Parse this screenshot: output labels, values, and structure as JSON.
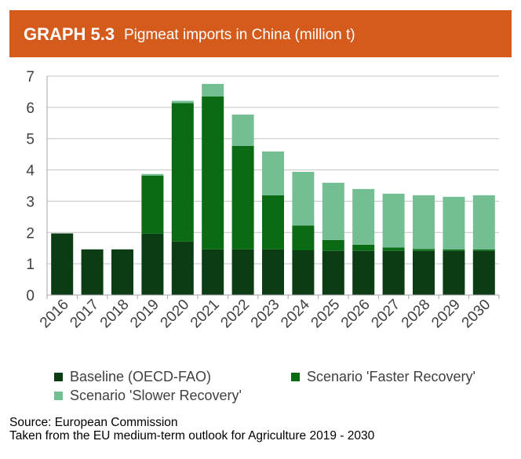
{
  "header": {
    "graph_label": "GRAPH 5.3",
    "background_color": "#d55b1d"
  },
  "chart_data": {
    "type": "bar",
    "stacked": true,
    "title": "Pigmeat imports in China (million t)",
    "categories": [
      "2016",
      "2017",
      "2018",
      "2019",
      "2020",
      "2021",
      "2022",
      "2023",
      "2024",
      "2025",
      "2026",
      "2027",
      "2028",
      "2029",
      "2030"
    ],
    "series": [
      {
        "name": "Baseline (OECD-FAO)",
        "color": "#0c3c13",
        "values": [
          1.97,
          1.46,
          1.46,
          1.96,
          1.71,
          1.46,
          1.46,
          1.46,
          1.43,
          1.41,
          1.41,
          1.41,
          1.41,
          1.41,
          1.41
        ]
      },
      {
        "name": "Scenario 'Faster Recovery'",
        "color": "#0a6b14",
        "values": [
          0,
          0,
          0,
          1.86,
          4.43,
          4.89,
          3.31,
          1.73,
          0.79,
          0.35,
          0.2,
          0.11,
          0.06,
          0.05,
          0.05
        ]
      },
      {
        "name": "Scenario 'Slower Recovery'",
        "color": "#74be93",
        "values": [
          0,
          0,
          0,
          0.05,
          0.07,
          0.4,
          1.0,
          1.4,
          1.72,
          1.83,
          1.78,
          1.72,
          1.72,
          1.68,
          1.73
        ]
      }
    ],
    "ylim": [
      0,
      7
    ],
    "yticks": [
      0,
      1,
      2,
      3,
      4,
      5,
      6,
      7
    ],
    "grid": true,
    "legend": "bottom"
  },
  "source": {
    "line1": "Source: European Commission",
    "line2": "Taken from the EU medium-term outlook for Agriculture 2019 - 2030"
  }
}
